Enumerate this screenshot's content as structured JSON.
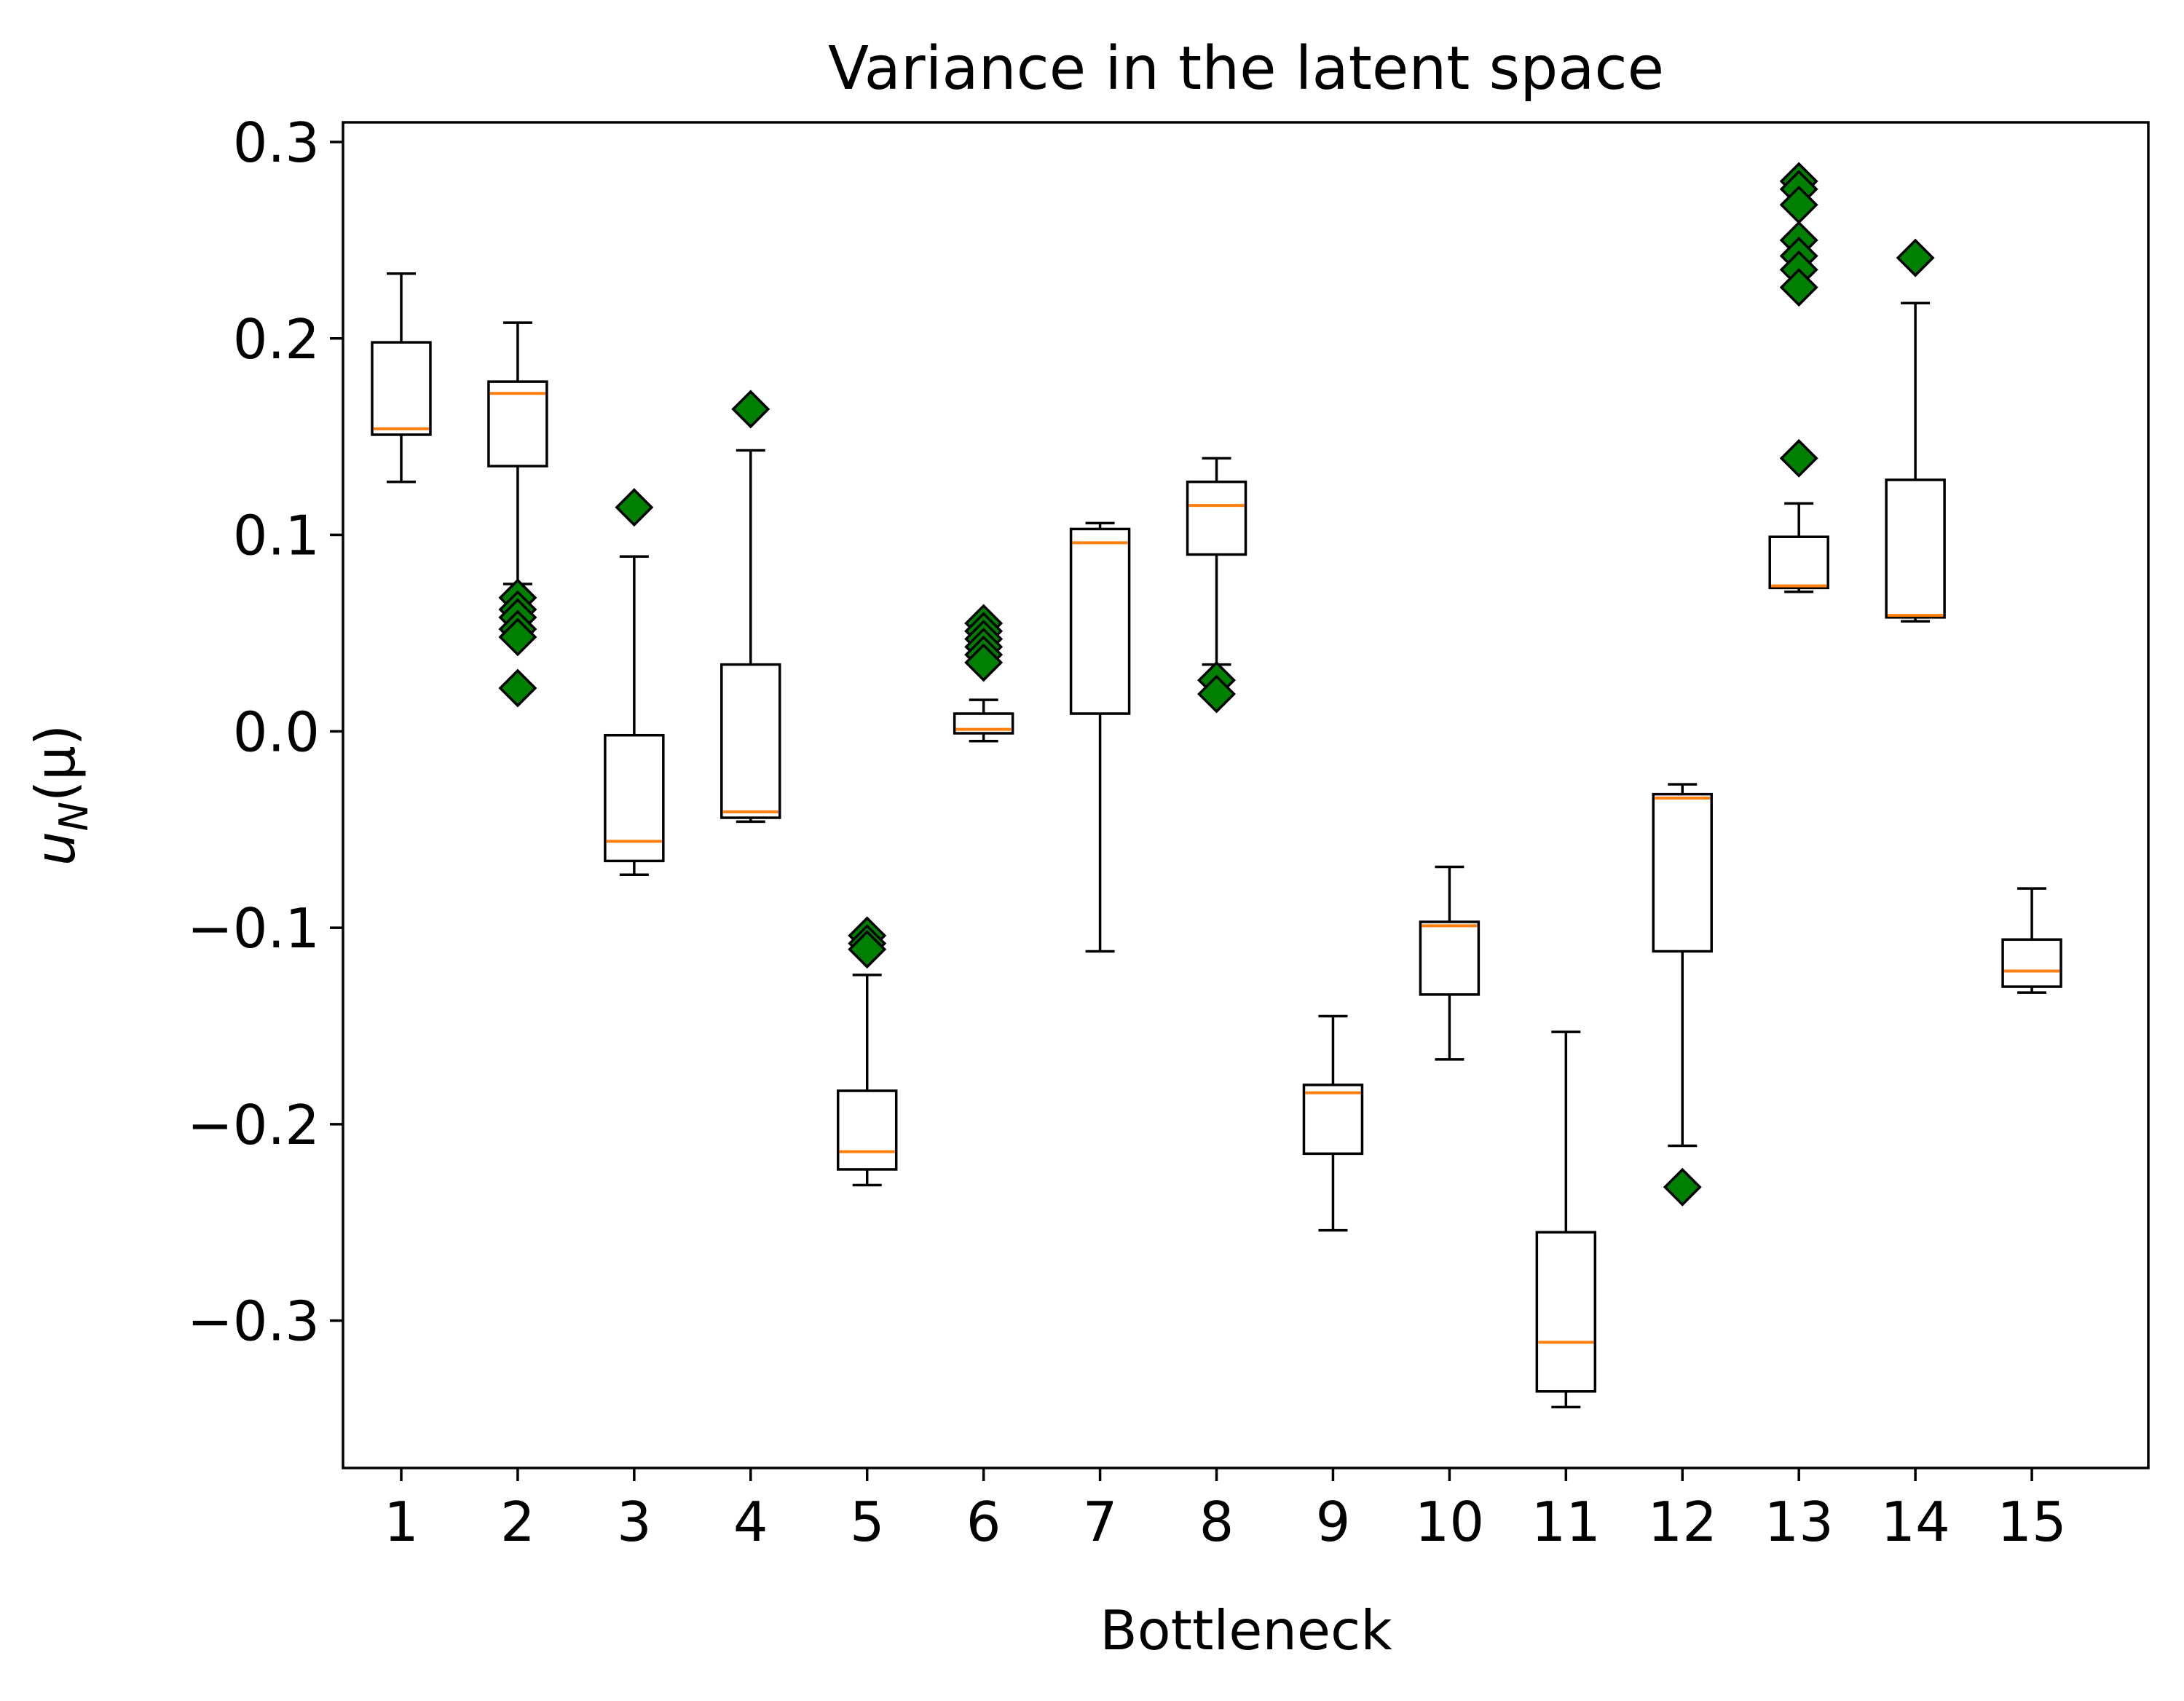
{
  "chart_data": {
    "type": "box",
    "title": "Variance in the latent space",
    "xlabel": "Bottleneck",
    "ylabel": "u_N(μ)",
    "ylabel_main": "u",
    "ylabel_sub": "N",
    "ylabel_rest": "(μ)",
    "ylim": [
      -0.375,
      0.31
    ],
    "yticks": [
      0.3,
      0.2,
      0.1,
      0.0,
      -0.1,
      -0.2,
      -0.3
    ],
    "ytick_labels": [
      "0.3",
      "0.2",
      "0.1",
      "0.0",
      "−0.1",
      "−0.2",
      "−0.3"
    ],
    "categories": [
      "1",
      "2",
      "3",
      "4",
      "5",
      "6",
      "7",
      "8",
      "9",
      "10",
      "11",
      "12",
      "13",
      "14",
      "15"
    ],
    "grid": false,
    "colors": {
      "median": "#ff7f0e",
      "box": "#000000",
      "outlier_fill": "#008000",
      "outlier_edge": "#000000"
    },
    "boxes": [
      {
        "whisker_low": 0.127,
        "q1": 0.151,
        "median": 0.154,
        "q3": 0.198,
        "whisker_high": 0.233,
        "outliers": []
      },
      {
        "whisker_low": 0.075,
        "q1": 0.135,
        "median": 0.172,
        "q3": 0.178,
        "whisker_high": 0.208,
        "outliers": [
          0.068,
          0.062,
          0.058,
          0.052,
          0.048,
          0.022
        ]
      },
      {
        "whisker_low": -0.073,
        "q1": -0.066,
        "median": -0.056,
        "q3": -0.002,
        "whisker_high": 0.089,
        "outliers": [
          0.114
        ]
      },
      {
        "whisker_low": -0.046,
        "q1": -0.044,
        "median": -0.041,
        "q3": 0.034,
        "whisker_high": 0.143,
        "outliers": [
          0.164
        ]
      },
      {
        "whisker_low": -0.231,
        "q1": -0.223,
        "median": -0.214,
        "q3": -0.183,
        "whisker_high": -0.124,
        "outliers": [
          -0.104,
          -0.108,
          -0.111
        ]
      },
      {
        "whisker_low": -0.005,
        "q1": -0.001,
        "median": 0.001,
        "q3": 0.009,
        "whisker_high": 0.016,
        "outliers": [
          0.055,
          0.051,
          0.047,
          0.043,
          0.039,
          0.035
        ]
      },
      {
        "whisker_low": -0.112,
        "q1": 0.009,
        "median": 0.096,
        "q3": 0.103,
        "whisker_high": 0.106,
        "outliers": []
      },
      {
        "whisker_low": 0.034,
        "q1": 0.09,
        "median": 0.115,
        "q3": 0.127,
        "whisker_high": 0.139,
        "outliers": [
          0.026,
          0.019
        ]
      },
      {
        "whisker_low": -0.254,
        "q1": -0.215,
        "median": -0.184,
        "q3": -0.18,
        "whisker_high": -0.145,
        "outliers": []
      },
      {
        "whisker_low": -0.167,
        "q1": -0.134,
        "median": -0.099,
        "q3": -0.097,
        "whisker_high": -0.069,
        "outliers": []
      },
      {
        "whisker_low": -0.344,
        "q1": -0.336,
        "median": -0.311,
        "q3": -0.255,
        "whisker_high": -0.153,
        "outliers": []
      },
      {
        "whisker_low": -0.211,
        "q1": -0.112,
        "median": -0.034,
        "q3": -0.032,
        "whisker_high": -0.027,
        "outliers": [
          -0.232
        ]
      },
      {
        "whisker_low": 0.071,
        "q1": 0.073,
        "median": 0.074,
        "q3": 0.099,
        "whisker_high": 0.116,
        "outliers": [
          0.28,
          0.276,
          0.268,
          0.25,
          0.242,
          0.235,
          0.226,
          0.139
        ]
      },
      {
        "whisker_low": 0.056,
        "q1": 0.058,
        "median": 0.059,
        "q3": 0.128,
        "whisker_high": 0.218,
        "outliers": [
          0.241
        ]
      },
      {
        "whisker_low": -0.133,
        "q1": -0.13,
        "median": -0.122,
        "q3": -0.106,
        "whisker_high": -0.08,
        "outliers": []
      }
    ]
  }
}
